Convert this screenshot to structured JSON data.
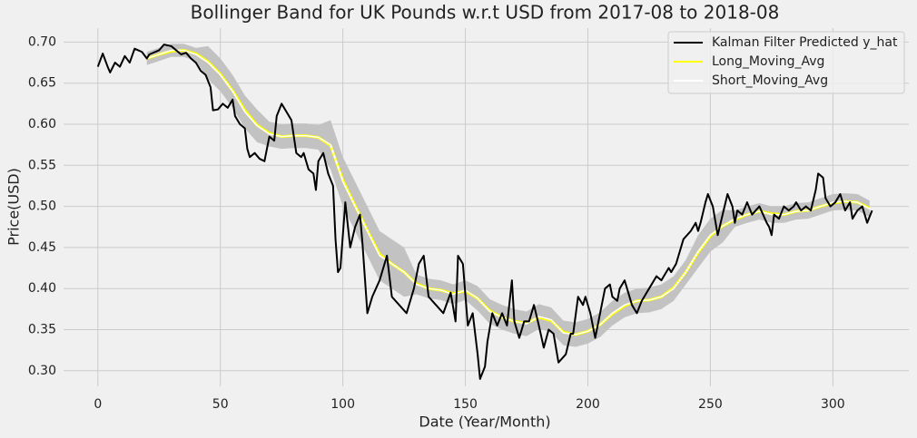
{
  "chart_data": {
    "type": "line",
    "title": "Bollinger Band for UK Pounds w.r.t USD from 2017-08 to 2018-08",
    "xlabel": "Date (Year/Month)",
    "ylabel": "Price(USD)",
    "xlim": [
      -14,
      331
    ],
    "ylim": [
      0.281,
      0.717
    ],
    "xticks": [
      0,
      50,
      100,
      150,
      200,
      250,
      300
    ],
    "yticks": [
      {
        "value": 0.3,
        "label": "0.30"
      },
      0.35,
      {
        "value": 0.4,
        "label": "0.40"
      },
      0.45,
      {
        "value": 0.5,
        "label": "0.50"
      },
      0.55,
      {
        "value": 0.6,
        "label": "0.60"
      },
      0.65,
      {
        "value": 0.7,
        "label": "0.70"
      }
    ],
    "grid": true,
    "legend": "upper right",
    "band": {
      "color": "#c2c2c2",
      "x": [
        20,
        25,
        30,
        35,
        40,
        45,
        50,
        55,
        60,
        65,
        70,
        75,
        80,
        85,
        90,
        95,
        100,
        105,
        110,
        115,
        120,
        125,
        130,
        135,
        140,
        145,
        150,
        155,
        160,
        165,
        170,
        175,
        180,
        185,
        190,
        195,
        200,
        205,
        210,
        215,
        220,
        225,
        230,
        235,
        240,
        245,
        250,
        255,
        260,
        265,
        270,
        275,
        280,
        285,
        290,
        295,
        300,
        305,
        310,
        315
      ],
      "upper": [
        0.688,
        0.693,
        0.698,
        0.698,
        0.693,
        0.695,
        0.68,
        0.66,
        0.635,
        0.618,
        0.603,
        0.6,
        0.601,
        0.601,
        0.599,
        0.605,
        0.56,
        0.53,
        0.5,
        0.47,
        0.46,
        0.45,
        0.417,
        0.412,
        0.41,
        0.405,
        0.41,
        0.403,
        0.387,
        0.38,
        0.375,
        0.372,
        0.381,
        0.377,
        0.361,
        0.359,
        0.363,
        0.371,
        0.385,
        0.395,
        0.4,
        0.401,
        0.405,
        0.415,
        0.435,
        0.465,
        0.485,
        0.496,
        0.495,
        0.5,
        0.504,
        0.5,
        0.5,
        0.504,
        0.505,
        0.51,
        0.515,
        0.516,
        0.515,
        0.507
      ],
      "lower": [
        0.672,
        0.677,
        0.682,
        0.682,
        0.677,
        0.655,
        0.64,
        0.62,
        0.595,
        0.578,
        0.573,
        0.57,
        0.571,
        0.571,
        0.569,
        0.545,
        0.5,
        0.47,
        0.44,
        0.41,
        0.4,
        0.39,
        0.393,
        0.388,
        0.386,
        0.381,
        0.386,
        0.373,
        0.357,
        0.35,
        0.345,
        0.342,
        0.351,
        0.347,
        0.331,
        0.329,
        0.333,
        0.341,
        0.355,
        0.365,
        0.37,
        0.371,
        0.375,
        0.385,
        0.405,
        0.425,
        0.445,
        0.456,
        0.475,
        0.48,
        0.484,
        0.48,
        0.48,
        0.484,
        0.485,
        0.49,
        0.495,
        0.496,
        0.495,
        0.487
      ]
    },
    "series": [
      {
        "name": "Kalman Filter Predicted y_hat",
        "color": "#000000",
        "x": [
          0,
          2,
          4,
          5,
          7,
          9,
          11,
          13,
          15,
          18,
          20,
          21,
          25,
          27,
          30,
          32,
          34,
          36,
          38,
          40,
          42,
          44,
          46,
          47,
          49,
          51,
          53,
          55,
          56,
          58,
          60,
          61,
          62,
          64,
          66,
          68,
          70,
          72,
          73,
          75,
          77,
          79,
          81,
          83,
          84,
          86,
          88,
          89,
          90,
          92,
          94,
          96,
          97,
          98,
          99,
          101,
          103,
          105,
          107,
          108,
          110,
          112,
          115,
          118,
          120,
          123,
          126,
          129,
          131,
          133,
          135,
          138,
          141,
          144,
          146,
          147,
          149,
          151,
          153,
          155,
          156,
          158,
          159,
          161,
          163,
          165,
          167,
          169,
          170,
          172,
          174,
          176,
          178,
          180,
          182,
          184,
          186,
          188,
          191,
          193,
          194,
          196,
          198,
          199,
          201,
          203,
          205,
          207,
          209,
          210,
          212,
          213,
          215,
          218,
          220,
          222,
          225,
          228,
          230,
          233,
          234,
          236,
          239,
          242,
          244,
          245,
          246,
          248,
          249,
          251,
          253,
          255,
          257,
          259,
          260,
          261,
          263,
          265,
          267,
          270,
          273,
          274,
          275,
          276,
          278,
          280,
          282,
          284,
          285,
          287,
          289,
          291,
          293,
          294,
          296,
          297,
          299,
          301,
          303,
          305,
          307,
          308,
          310,
          312,
          314,
          316
        ],
        "values": [
          0.67,
          0.686,
          0.67,
          0.663,
          0.675,
          0.67,
          0.683,
          0.675,
          0.692,
          0.688,
          0.68,
          0.685,
          0.69,
          0.697,
          0.695,
          0.69,
          0.685,
          0.687,
          0.68,
          0.675,
          0.665,
          0.66,
          0.645,
          0.617,
          0.618,
          0.625,
          0.62,
          0.63,
          0.61,
          0.6,
          0.595,
          0.57,
          0.56,
          0.565,
          0.558,
          0.555,
          0.585,
          0.58,
          0.61,
          0.625,
          0.615,
          0.605,
          0.565,
          0.56,
          0.565,
          0.545,
          0.54,
          0.52,
          0.555,
          0.565,
          0.54,
          0.525,
          0.46,
          0.42,
          0.425,
          0.505,
          0.45,
          0.475,
          0.49,
          0.455,
          0.37,
          0.39,
          0.41,
          0.44,
          0.39,
          0.38,
          0.37,
          0.4,
          0.43,
          0.44,
          0.39,
          0.38,
          0.37,
          0.395,
          0.36,
          0.44,
          0.43,
          0.355,
          0.37,
          0.32,
          0.29,
          0.305,
          0.335,
          0.37,
          0.355,
          0.37,
          0.355,
          0.41,
          0.36,
          0.34,
          0.36,
          0.36,
          0.38,
          0.355,
          0.328,
          0.35,
          0.345,
          0.31,
          0.32,
          0.345,
          0.345,
          0.39,
          0.38,
          0.39,
          0.37,
          0.34,
          0.37,
          0.4,
          0.405,
          0.39,
          0.385,
          0.4,
          0.41,
          0.38,
          0.37,
          0.385,
          0.4,
          0.415,
          0.41,
          0.425,
          0.42,
          0.43,
          0.46,
          0.47,
          0.48,
          0.47,
          0.48,
          0.505,
          0.515,
          0.5,
          0.465,
          0.49,
          0.515,
          0.5,
          0.48,
          0.495,
          0.49,
          0.505,
          0.49,
          0.5,
          0.48,
          0.475,
          0.465,
          0.49,
          0.485,
          0.5,
          0.495,
          0.5,
          0.505,
          0.495,
          0.5,
          0.495,
          0.52,
          0.54,
          0.535,
          0.51,
          0.5,
          0.505,
          0.515,
          0.495,
          0.505,
          0.485,
          0.495,
          0.5,
          0.48,
          0.495
        ]
      },
      {
        "name": "Long_Moving_Avg",
        "color": "#ffff00",
        "x": [
          20,
          25,
          30,
          35,
          40,
          45,
          50,
          55,
          60,
          65,
          70,
          75,
          80,
          85,
          90,
          95,
          100,
          105,
          110,
          115,
          120,
          125,
          130,
          135,
          140,
          145,
          150,
          155,
          160,
          165,
          170,
          175,
          180,
          185,
          190,
          195,
          200,
          205,
          210,
          215,
          220,
          225,
          230,
          235,
          240,
          245,
          250,
          255,
          260,
          265,
          270,
          275,
          280,
          285,
          290,
          295,
          300,
          305,
          310,
          315
        ],
        "values": [
          0.68,
          0.685,
          0.689,
          0.69,
          0.686,
          0.676,
          0.661,
          0.641,
          0.617,
          0.599,
          0.589,
          0.585,
          0.586,
          0.586,
          0.584,
          0.574,
          0.532,
          0.501,
          0.471,
          0.442,
          0.43,
          0.42,
          0.406,
          0.4,
          0.398,
          0.394,
          0.397,
          0.388,
          0.373,
          0.365,
          0.36,
          0.358,
          0.365,
          0.361,
          0.347,
          0.344,
          0.348,
          0.356,
          0.369,
          0.379,
          0.385,
          0.386,
          0.39,
          0.401,
          0.42,
          0.444,
          0.464,
          0.476,
          0.484,
          0.49,
          0.494,
          0.491,
          0.49,
          0.494,
          0.495,
          0.5,
          0.504,
          0.506,
          0.505,
          0.498
        ]
      },
      {
        "name": "Short_Moving_Avg",
        "color": "#ffffff",
        "x": [
          20,
          25,
          30,
          35,
          40,
          45,
          50,
          55,
          60,
          65,
          70,
          75,
          80,
          85,
          90,
          95,
          100,
          105,
          110,
          115,
          120,
          125,
          130,
          135,
          140,
          145,
          150,
          155,
          160,
          165,
          170,
          175,
          180,
          185,
          190,
          195,
          200,
          205,
          210,
          215,
          220,
          225,
          230,
          235,
          240,
          245,
          250,
          255,
          260,
          265,
          270,
          275,
          280,
          285,
          290,
          295,
          300,
          305,
          310,
          315
        ],
        "values": [
          0.68,
          0.685,
          0.69,
          0.69,
          0.685,
          0.675,
          0.66,
          0.64,
          0.615,
          0.598,
          0.588,
          0.585,
          0.586,
          0.586,
          0.584,
          0.575,
          0.53,
          0.5,
          0.47,
          0.44,
          0.43,
          0.42,
          0.405,
          0.4,
          0.398,
          0.393,
          0.398,
          0.388,
          0.372,
          0.365,
          0.36,
          0.357,
          0.366,
          0.362,
          0.346,
          0.344,
          0.348,
          0.356,
          0.37,
          0.38,
          0.385,
          0.386,
          0.39,
          0.4,
          0.42,
          0.445,
          0.465,
          0.476,
          0.485,
          0.49,
          0.494,
          0.49,
          0.49,
          0.494,
          0.495,
          0.5,
          0.505,
          0.506,
          0.505,
          0.497
        ]
      }
    ]
  }
}
